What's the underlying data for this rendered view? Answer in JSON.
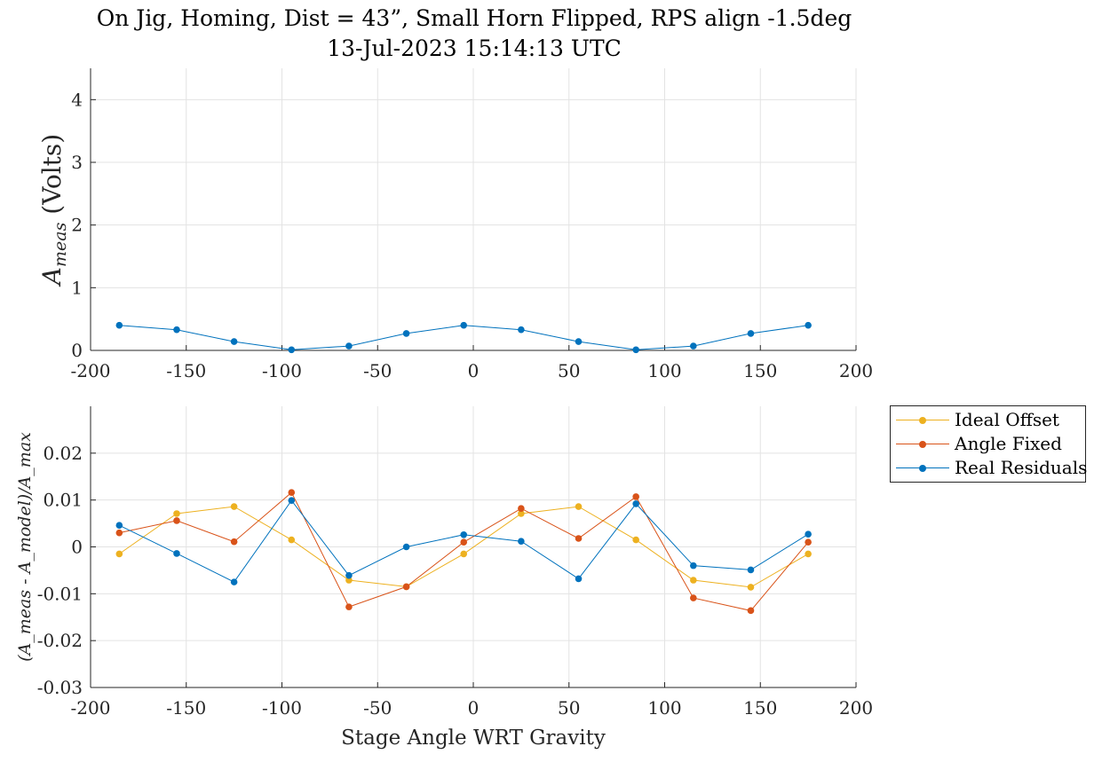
{
  "title": {
    "line1": "On Jig, Homing, Dist = 43”, Small Horn Flipped, RPS align -1.5deg",
    "line2": "13-Jul-2023 15:14:13 UTC"
  },
  "colors": {
    "ideal_offset": "#EDB120",
    "angle_fixed": "#D95319",
    "real_residuals": "#0072BD",
    "grid": "#e3e3e3",
    "axis": "#262626"
  },
  "legend": {
    "placement": "outside-right of lower plot",
    "items": [
      "Ideal Offset",
      "Angle Fixed",
      "Real Residuals"
    ]
  },
  "chart_data": [
    {
      "type": "line",
      "xlabel": "",
      "ylabel": "A_meas (Volts)",
      "ylabel_main": "A",
      "ylabel_sub": "meas",
      "ylabel_rest": " (Volts)",
      "xlim": [
        -200,
        200
      ],
      "ylim": [
        0,
        4.5
      ],
      "xticks": [
        "-200",
        "-150",
        "-100",
        "-50",
        "0",
        "50",
        "100",
        "150",
        "200"
      ],
      "yticks": [
        "0",
        "1",
        "2",
        "3",
        "4"
      ],
      "grid": true,
      "series": [
        {
          "x": [
            -185,
            -155,
            -125,
            -95,
            -65,
            -35,
            -5,
            25,
            55,
            85,
            115,
            145,
            175
          ],
          "values": [
            0.4,
            0.33,
            0.14,
            0.01,
            0.07,
            0.27,
            0.4,
            0.33,
            0.14,
            0.01,
            0.07,
            0.27,
            0.4
          ],
          "color": "#0072BD"
        }
      ]
    },
    {
      "type": "line",
      "xlabel": "Stage Angle WRT Gravity",
      "ylabel": "(A_meas - A_model)/A_max",
      "xlim": [
        -200,
        200
      ],
      "ylim": [
        -0.03,
        0.03
      ],
      "xticks": [
        "-200",
        "-150",
        "-100",
        "-50",
        "0",
        "50",
        "100",
        "150",
        "200"
      ],
      "yticks": [
        "-0.03",
        "-0.02",
        "-0.01",
        "0",
        "0.01",
        "0.02"
      ],
      "grid": true,
      "x": [
        -185,
        -155,
        -125,
        -95,
        -65,
        -35,
        -5,
        25,
        55,
        85,
        115,
        145,
        175
      ],
      "series": [
        {
          "name": "Ideal Offset",
          "color": "#EDB120",
          "values": [
            -0.0015,
            0.0071,
            0.0086,
            0.0015,
            -0.0071,
            -0.0085,
            -0.0015,
            0.0071,
            0.0086,
            0.0015,
            -0.0071,
            -0.0086,
            -0.0015
          ]
        },
        {
          "name": "Angle Fixed",
          "color": "#D95319",
          "values": [
            0.003,
            0.0056,
            0.0011,
            0.0116,
            -0.0128,
            -0.0085,
            0.001,
            0.0082,
            0.0018,
            0.0107,
            -0.0109,
            -0.0136,
            0.001
          ]
        },
        {
          "name": "Real Residuals",
          "color": "#0072BD",
          "values": [
            0.0046,
            -0.0014,
            -0.0075,
            0.0099,
            -0.0061,
            0.0,
            0.0026,
            0.0012,
            -0.0068,
            0.0092,
            -0.004,
            -0.0049,
            0.0027
          ]
        }
      ]
    }
  ]
}
